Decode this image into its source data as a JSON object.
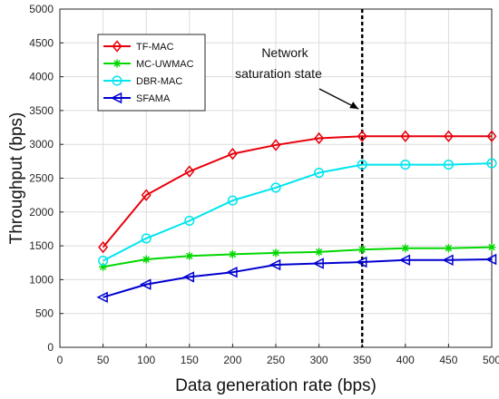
{
  "chart_data": {
    "type": "line",
    "xlabel": "Data generation rate (bps)",
    "ylabel": "Throughput (bps)",
    "xlim": [
      0,
      500
    ],
    "ylim": [
      0,
      5000
    ],
    "xticks": [
      0,
      50,
      100,
      150,
      200,
      250,
      300,
      350,
      400,
      450,
      500
    ],
    "yticks": [
      0,
      500,
      1000,
      1500,
      2000,
      2500,
      3000,
      3500,
      4000,
      4500,
      5000
    ],
    "grid": true,
    "legend_position": "top-left",
    "x": [
      50,
      100,
      150,
      200,
      250,
      300,
      350,
      400,
      450,
      500
    ],
    "series": [
      {
        "name": "TF-MAC",
        "color": "#e8000b",
        "marker": "diamond",
        "values": [
          1480,
          2250,
          2600,
          2860,
          2990,
          3090,
          3120,
          3120,
          3120,
          3120
        ]
      },
      {
        "name": "MC-UWMAC",
        "color": "#00d800",
        "marker": "asterisk",
        "values": [
          1190,
          1300,
          1350,
          1375,
          1395,
          1410,
          1445,
          1465,
          1465,
          1480
        ]
      },
      {
        "name": "DBR-MAC",
        "color": "#00e5ee",
        "marker": "circle",
        "values": [
          1280,
          1610,
          1870,
          2170,
          2360,
          2580,
          2700,
          2700,
          2700,
          2720
        ]
      },
      {
        "name": "SFAMA",
        "color": "#0000d0",
        "marker": "triangle-left",
        "values": [
          740,
          930,
          1040,
          1110,
          1220,
          1240,
          1260,
          1290,
          1290,
          1300
        ]
      }
    ],
    "reference_line": {
      "x": 350,
      "style": "dashed",
      "color": "#000000"
    },
    "annotation": {
      "lines": [
        "Network",
        "saturation state"
      ],
      "arrow_to_x": 350,
      "arrow_to_y": 3550
    }
  }
}
